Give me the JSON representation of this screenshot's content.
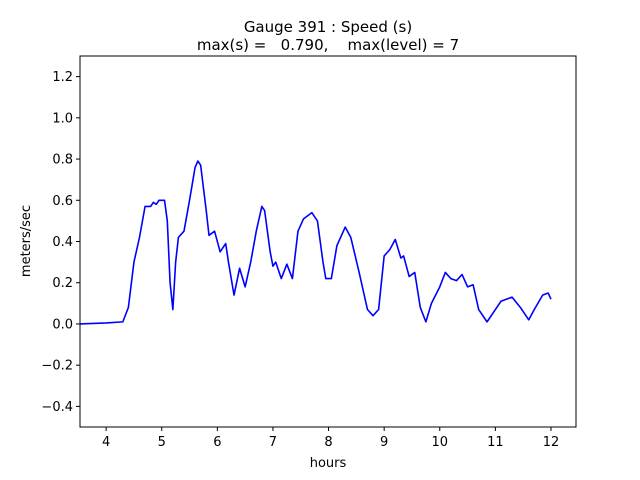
{
  "chart_data": {
    "type": "line",
    "title": "Gauge 391 : Speed (s)",
    "subtitle": "max(s) =   0.790,    max(level) = 7",
    "xlabel": "hours",
    "ylabel": "meters/sec",
    "xlim": [
      3.53,
      12.45
    ],
    "ylim": [
      -0.5,
      1.3
    ],
    "xticks": [
      4,
      5,
      6,
      7,
      8,
      9,
      10,
      11,
      12
    ],
    "yticks": [
      {
        "value": -0.4,
        "label": "−0.4"
      },
      {
        "value": -0.2,
        "label": "−0.2"
      },
      {
        "value": 0.0,
        "label": "0.0"
      },
      {
        "value": 0.2,
        "label": "0.2"
      },
      {
        "value": 0.4,
        "label": "0.4"
      },
      {
        "value": 0.6,
        "label": "0.6"
      },
      {
        "value": 0.8,
        "label": "0.8"
      },
      {
        "value": 1.0,
        "label": "1.0"
      },
      {
        "value": 1.2,
        "label": "1.2"
      }
    ],
    "grid": false,
    "x": [
      3.53,
      4.0,
      4.3,
      4.4,
      4.5,
      4.6,
      4.7,
      4.8,
      4.85,
      4.9,
      4.95,
      5.0,
      5.05,
      5.1,
      5.15,
      5.2,
      5.25,
      5.3,
      5.4,
      5.5,
      5.6,
      5.65,
      5.7,
      5.8,
      5.85,
      5.95,
      6.05,
      6.15,
      6.2,
      6.3,
      6.4,
      6.5,
      6.6,
      6.7,
      6.8,
      6.85,
      6.95,
      7.0,
      7.05,
      7.15,
      7.25,
      7.35,
      7.45,
      7.55,
      7.7,
      7.8,
      7.9,
      7.95,
      8.05,
      8.15,
      8.3,
      8.4,
      8.55,
      8.7,
      8.8,
      8.9,
      9.0,
      9.1,
      9.2,
      9.3,
      9.35,
      9.45,
      9.55,
      9.65,
      9.75,
      9.85,
      10.0,
      10.1,
      10.2,
      10.3,
      10.4,
      10.5,
      10.6,
      10.7,
      10.85,
      11.0,
      11.1,
      11.3,
      11.45,
      11.6,
      11.7,
      11.85,
      11.95,
      12.0
    ],
    "series": [
      {
        "color": "#0000ff",
        "values": [
          0.0,
          0.005,
          0.01,
          0.08,
          0.3,
          0.42,
          0.57,
          0.57,
          0.59,
          0.58,
          0.6,
          0.6,
          0.6,
          0.5,
          0.2,
          0.07,
          0.3,
          0.42,
          0.45,
          0.6,
          0.76,
          0.79,
          0.77,
          0.55,
          0.43,
          0.45,
          0.35,
          0.39,
          0.3,
          0.14,
          0.27,
          0.18,
          0.3,
          0.45,
          0.57,
          0.55,
          0.35,
          0.28,
          0.3,
          0.22,
          0.29,
          0.22,
          0.45,
          0.51,
          0.54,
          0.5,
          0.3,
          0.22,
          0.22,
          0.38,
          0.47,
          0.42,
          0.25,
          0.07,
          0.04,
          0.07,
          0.33,
          0.36,
          0.41,
          0.32,
          0.33,
          0.23,
          0.25,
          0.08,
          0.01,
          0.1,
          0.18,
          0.25,
          0.22,
          0.21,
          0.24,
          0.18,
          0.19,
          0.07,
          0.01,
          0.07,
          0.11,
          0.13,
          0.08,
          0.02,
          0.07,
          0.14,
          0.15,
          0.12
        ]
      }
    ]
  }
}
